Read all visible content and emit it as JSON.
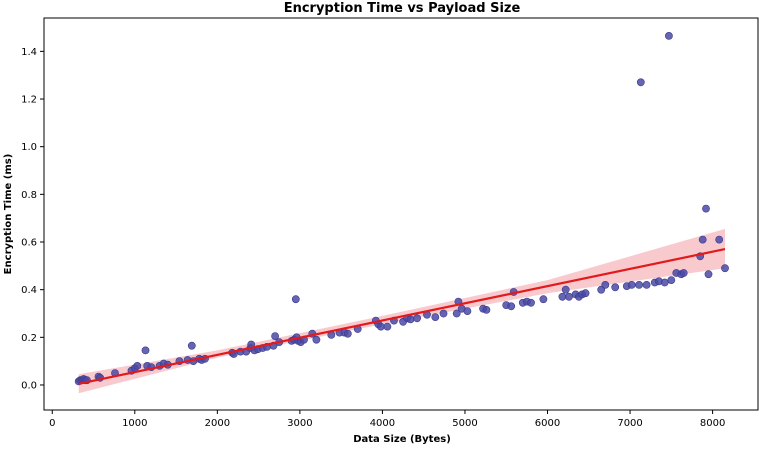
{
  "chart_data": {
    "type": "scatter",
    "title": "Encryption Time vs Payload Size",
    "xlabel": "Data Size (Bytes)",
    "ylabel": "Encryption Time (ms)",
    "xlim": [
      -100,
      8550
    ],
    "ylim": [
      -0.105,
      1.54
    ],
    "xticks": [
      0,
      1000,
      2000,
      3000,
      4000,
      5000,
      6000,
      7000,
      8000
    ],
    "yticks": [
      0.0,
      0.2,
      0.4,
      0.6,
      0.8,
      1.0,
      1.2,
      1.4
    ],
    "grid": false,
    "colors": {
      "points": "#4a4aa6",
      "trend": "#e31a1c",
      "band": "#f4a6ad"
    },
    "series": [
      {
        "type": "scatter",
        "x": [
          320,
          340,
          360,
          380,
          400,
          420,
          560,
          580,
          760,
          960,
          1000,
          1030,
          1130,
          1150,
          1200,
          1300,
          1350,
          1400,
          1540,
          1640,
          1690,
          1710,
          1780,
          1810,
          1850,
          2180,
          2200,
          2280,
          2350,
          2400,
          2410,
          2450,
          2490,
          2550,
          2600,
          2680,
          2700,
          2750,
          2900,
          2930,
          2950,
          2960,
          2980,
          3010,
          3050,
          3150,
          3200,
          3380,
          3480,
          3540,
          3580,
          3700,
          3920,
          3950,
          3980,
          4060,
          4140,
          4250,
          4300,
          4340,
          4420,
          4540,
          4640,
          4740,
          4900,
          4920,
          4960,
          5030,
          5220,
          5260,
          5500,
          5560,
          5590,
          5700,
          5750,
          5800,
          5950,
          6180,
          6220,
          6260,
          6340,
          6380,
          6420,
          6460,
          6650,
          6700,
          6820,
          6960,
          7020,
          7110,
          7130,
          7200,
          7300,
          7350,
          7420,
          7470,
          7500,
          7560,
          7620,
          7650,
          7850,
          7880,
          7920,
          7950,
          8080,
          8150
        ],
        "y": [
          0.015,
          0.02,
          0.02,
          0.025,
          0.02,
          0.02,
          0.035,
          0.03,
          0.05,
          0.06,
          0.07,
          0.08,
          0.145,
          0.08,
          0.075,
          0.08,
          0.09,
          0.085,
          0.1,
          0.105,
          0.165,
          0.1,
          0.11,
          0.105,
          0.11,
          0.135,
          0.13,
          0.14,
          0.14,
          0.155,
          0.17,
          0.145,
          0.15,
          0.155,
          0.16,
          0.165,
          0.205,
          0.18,
          0.185,
          0.19,
          0.36,
          0.2,
          0.185,
          0.18,
          0.19,
          0.215,
          0.19,
          0.21,
          0.22,
          0.22,
          0.215,
          0.235,
          0.27,
          0.255,
          0.245,
          0.245,
          0.27,
          0.265,
          0.28,
          0.275,
          0.28,
          0.295,
          0.285,
          0.3,
          0.3,
          0.35,
          0.32,
          0.31,
          0.32,
          0.315,
          0.335,
          0.33,
          0.39,
          0.345,
          0.35,
          0.345,
          0.36,
          0.37,
          0.4,
          0.37,
          0.38,
          0.37,
          0.38,
          0.385,
          0.4,
          0.42,
          0.41,
          0.415,
          0.42,
          0.42,
          1.27,
          0.42,
          0.43,
          0.435,
          0.43,
          1.465,
          0.44,
          0.47,
          0.465,
          0.47,
          0.54,
          0.61,
          0.74,
          0.465,
          0.61,
          0.49
        ]
      },
      {
        "type": "regression_line",
        "x": [
          320,
          8150
        ],
        "y": [
          0.005,
          0.57
        ]
      },
      {
        "type": "confidence_band",
        "x": [
          320,
          2000,
          4000,
          6000,
          8150
        ],
        "y_low": [
          -0.035,
          0.115,
          0.255,
          0.385,
          0.49
        ],
        "y_high": [
          0.045,
          0.145,
          0.29,
          0.44,
          0.655
        ]
      }
    ]
  }
}
